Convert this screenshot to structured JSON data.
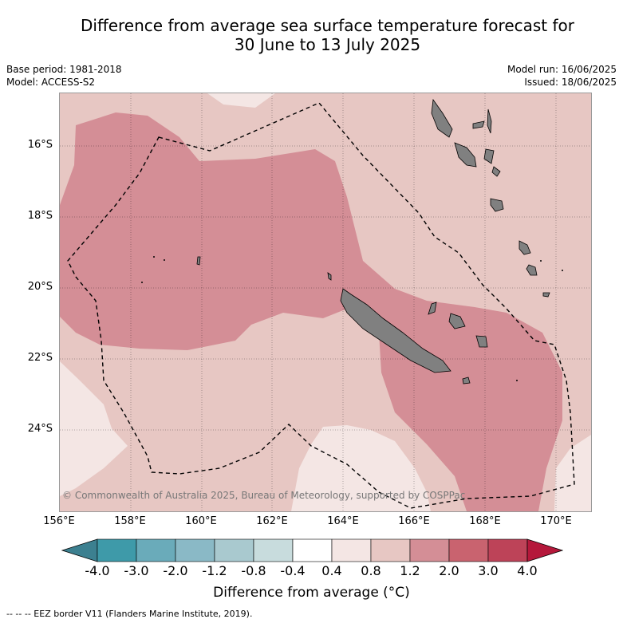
{
  "title": {
    "line1": "Difference from average sea surface temperature forecast for",
    "line2": "30 June to 13 July 2025"
  },
  "meta": {
    "base_period": "Base period: 1981-2018",
    "model": "Model: ACCESS-S2",
    "model_run": "Model run: 16/06/2025",
    "issued": "Issued: 18/06/2025"
  },
  "map": {
    "lat_labels": [
      "16°S",
      "18°S",
      "20°S",
      "22°S",
      "24°S"
    ],
    "lon_labels": [
      "156°E",
      "158°E",
      "160°E",
      "162°E",
      "164°E",
      "166°E",
      "168°E",
      "170°E"
    ],
    "copyright": "© Commonwealth of Australia 2025, Bureau of Meteorology, supported by COSPPac",
    "colors": {
      "class_0.4_0.8": "#f4e6e4",
      "class_0.8_1.2": "#e7c7c3",
      "class_1.2_2.0": "#d48e96",
      "land": "#808080"
    }
  },
  "colorbar": {
    "labels": [
      "-4.0",
      "-3.0",
      "-2.0",
      "-1.2",
      "-0.8",
      "-0.4",
      "0.4",
      "0.8",
      "1.2",
      "2.0",
      "3.0",
      "4.0"
    ],
    "colors": [
      "#3e9aa9",
      "#6aabba",
      "#8ab9c6",
      "#a9c9cf",
      "#c8dcdd",
      "#ffffff",
      "#f4e6e4",
      "#e7c7c3",
      "#d48e96",
      "#c9636f",
      "#bd4358"
    ],
    "under_color": "#3c8090",
    "over_color": "#b5183b",
    "title": "Difference from average (°C)"
  },
  "footer": "-- -- -- EEZ border V11 (Flanders Marine Institute, 2019)."
}
